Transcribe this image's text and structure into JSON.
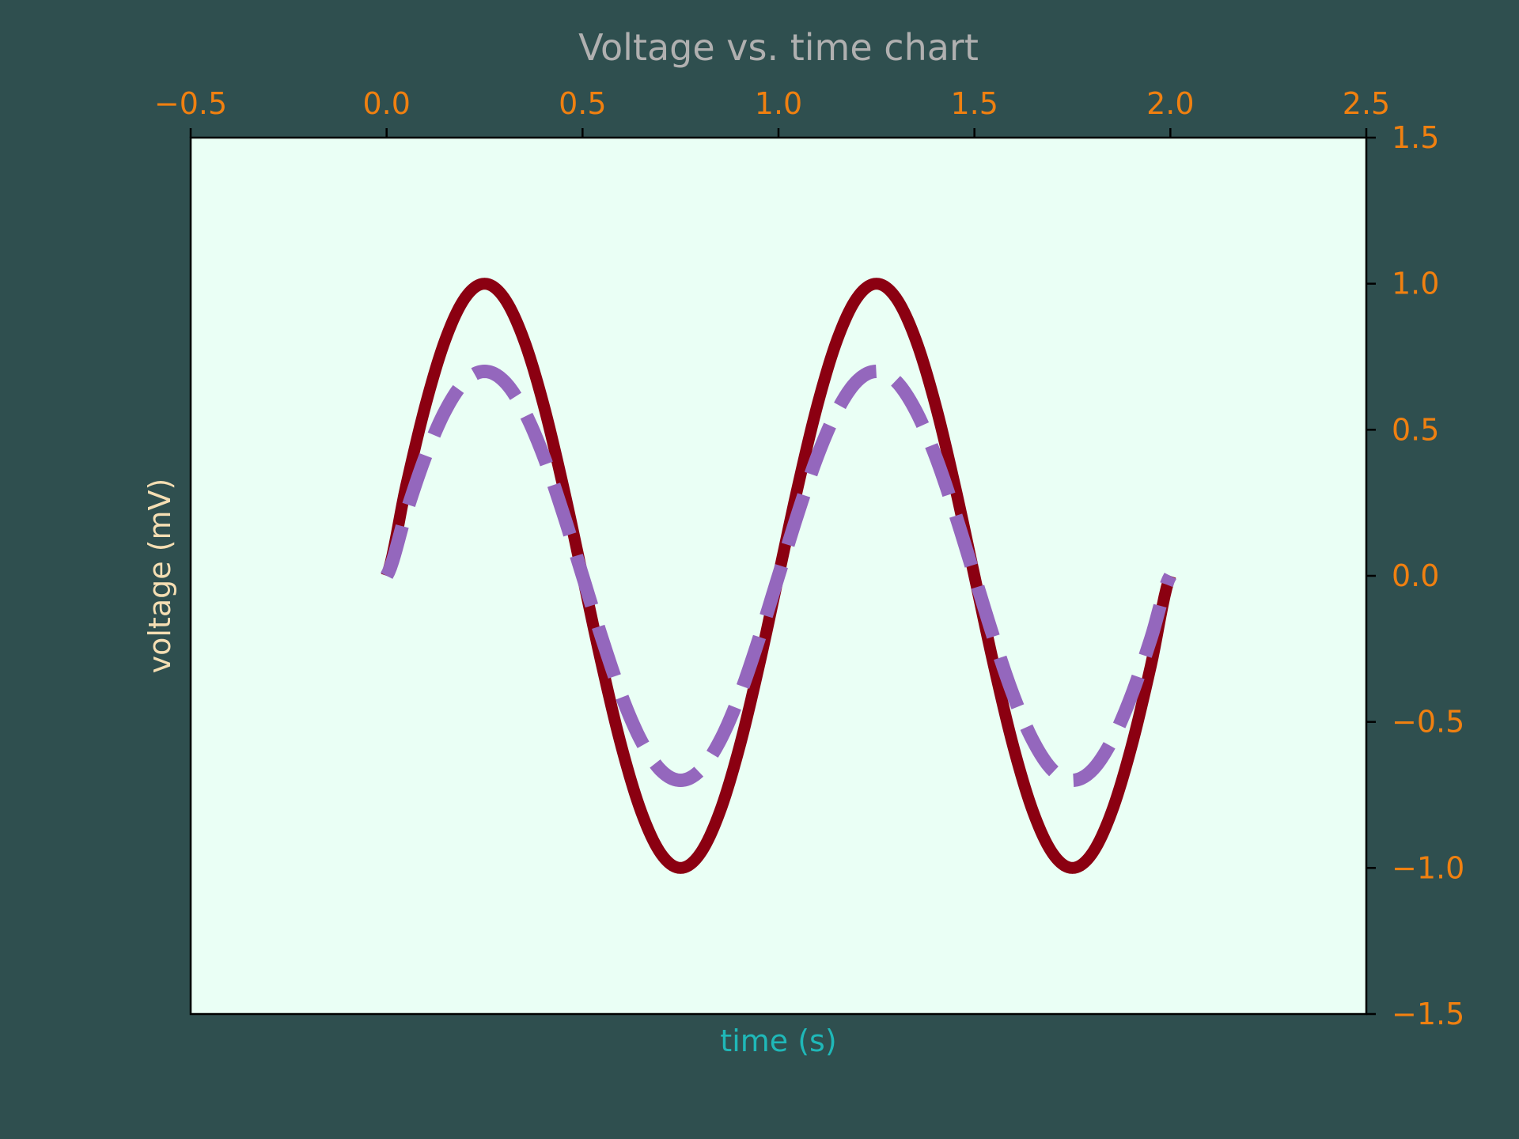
{
  "chart_data": {
    "type": "line",
    "title": "Voltage vs. time chart",
    "xlabel": "time (s)",
    "ylabel": "voltage (mV)",
    "xlim": [
      -0.5,
      2.5
    ],
    "ylim": [
      -1.5,
      1.5
    ],
    "x_ticks": [
      -0.5,
      0.0,
      0.5,
      1.0,
      1.5,
      2.0,
      2.5
    ],
    "x_tick_labels": [
      "−0.5",
      "0.0",
      "0.5",
      "1.0",
      "1.5",
      "2.0",
      "2.5"
    ],
    "y_ticks": [
      1.5,
      1.0,
      0.5,
      0.0,
      -0.5,
      -1.0,
      -1.5
    ],
    "y_tick_labels": [
      "1.5",
      "1.0",
      "0.5",
      "0.0",
      "−0.5",
      "−1.0",
      "−1.5"
    ],
    "x_axis_position": "top",
    "y_axis_position": "right",
    "grid": false,
    "series": [
      {
        "style": "solid",
        "color": "#8b0011",
        "x": [
          0.0,
          0.05,
          0.1,
          0.15,
          0.2,
          0.25,
          0.3,
          0.35,
          0.4,
          0.45,
          0.5,
          0.55,
          0.6,
          0.65,
          0.7,
          0.75,
          0.8,
          0.85,
          0.9,
          0.95,
          1.0,
          1.05,
          1.1,
          1.15,
          1.2,
          1.25,
          1.3,
          1.35,
          1.4,
          1.45,
          1.5,
          1.55,
          1.6,
          1.65,
          1.7,
          1.75,
          1.8,
          1.85,
          1.9,
          1.95,
          2.0
        ],
        "values": [
          0.0,
          0.309,
          0.588,
          0.809,
          0.951,
          1.0,
          0.951,
          0.809,
          0.588,
          0.309,
          0.0,
          -0.309,
          -0.588,
          -0.809,
          -0.951,
          -1.0,
          -0.951,
          -0.809,
          -0.588,
          -0.309,
          0.0,
          0.309,
          0.588,
          0.809,
          0.951,
          1.0,
          0.951,
          0.809,
          0.588,
          0.309,
          0.0,
          -0.309,
          -0.588,
          -0.809,
          -0.951,
          -1.0,
          -0.951,
          -0.809,
          -0.588,
          -0.309,
          0.0
        ]
      },
      {
        "style": "dashed",
        "color": "#9467bd",
        "x": [
          0.0,
          0.05,
          0.1,
          0.15,
          0.2,
          0.25,
          0.3,
          0.35,
          0.4,
          0.45,
          0.5,
          0.55,
          0.6,
          0.65,
          0.7,
          0.75,
          0.8,
          0.85,
          0.9,
          0.95,
          1.0,
          1.05,
          1.1,
          1.15,
          1.2,
          1.25,
          1.3,
          1.35,
          1.4,
          1.45,
          1.5,
          1.55,
          1.6,
          1.65,
          1.7,
          1.75,
          1.8,
          1.85,
          1.9,
          1.95,
          2.0
        ],
        "values": [
          0.0,
          0.216,
          0.412,
          0.566,
          0.666,
          0.7,
          0.666,
          0.566,
          0.412,
          0.216,
          0.0,
          -0.216,
          -0.412,
          -0.566,
          -0.666,
          -0.7,
          -0.666,
          -0.566,
          -0.412,
          -0.216,
          0.0,
          0.216,
          0.412,
          0.566,
          0.666,
          0.7,
          0.666,
          0.566,
          0.412,
          0.216,
          0.0,
          -0.216,
          -0.412,
          -0.566,
          -0.666,
          -0.7,
          -0.666,
          -0.566,
          -0.412,
          -0.216,
          0.0
        ]
      }
    ],
    "colors": {
      "figure_background": "#2f4f4f",
      "plot_background": "#eafff5",
      "title": "#b0b0b0",
      "tick_labels": "#f08010",
      "xlabel": "#1fb8b8",
      "ylabel": "#f5deb3",
      "frame": "#000000"
    }
  }
}
